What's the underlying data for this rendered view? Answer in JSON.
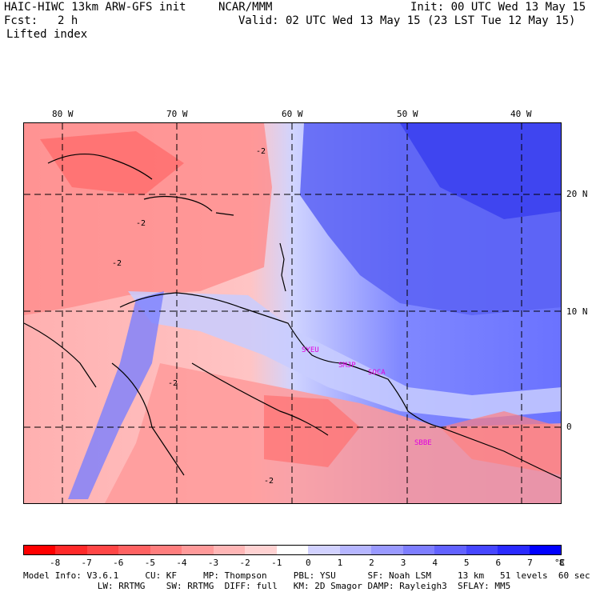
{
  "header": {
    "model": "HAIC-HIWC 13km ARW-GFS init",
    "org": "NCAR/MMM",
    "init": "Init: 00 UTC Wed 13 May 15",
    "fcst_label": "Fcst:",
    "fcst_value": "2 h",
    "valid": "Valid: 02 UTC Wed 13 May 15 (23 LST Tue 12 May 15)",
    "field": "Lifted index"
  },
  "axes": {
    "lon_labels": [
      "80 W",
      "70 W",
      "60 W",
      "50 W",
      "40 W"
    ],
    "lat_labels": [
      "20 N",
      "10 N",
      "0"
    ]
  },
  "contour_labels": [
    "-2"
  ],
  "sites": [
    "SYEU",
    "SMJP",
    "SOCA",
    "SBBE"
  ],
  "colorbar": {
    "ticks": [
      "-8",
      "-7",
      "-6",
      "-5",
      "-4",
      "-3",
      "-2",
      "-1",
      "0",
      "1",
      "2",
      "3",
      "4",
      "5",
      "6",
      "7",
      "8"
    ],
    "unit": "°C",
    "colors": [
      "#ff0000",
      "#ff2a2a",
      "#ff4646",
      "#ff6262",
      "#ff7e7e",
      "#ff9a9a",
      "#ffb6b6",
      "#ffd2d2",
      "#ffffff",
      "#d2d2ff",
      "#b6b6ff",
      "#9a9aff",
      "#7e7eff",
      "#6262ff",
      "#4646ff",
      "#2a2aff",
      "#0000ff"
    ]
  },
  "footer": {
    "line1": "Model Info: V3.6.1     CU: KF     MP: Thompson     PBL: YSU      SF: Noah LSM     13 km   51 levels  60 sec",
    "line2": "              LW: RRTMG    SW: RRTMG  DIFF: full   KM: 2D Smagor DAMP: Rayleigh3  SFLAY: MM5"
  }
}
